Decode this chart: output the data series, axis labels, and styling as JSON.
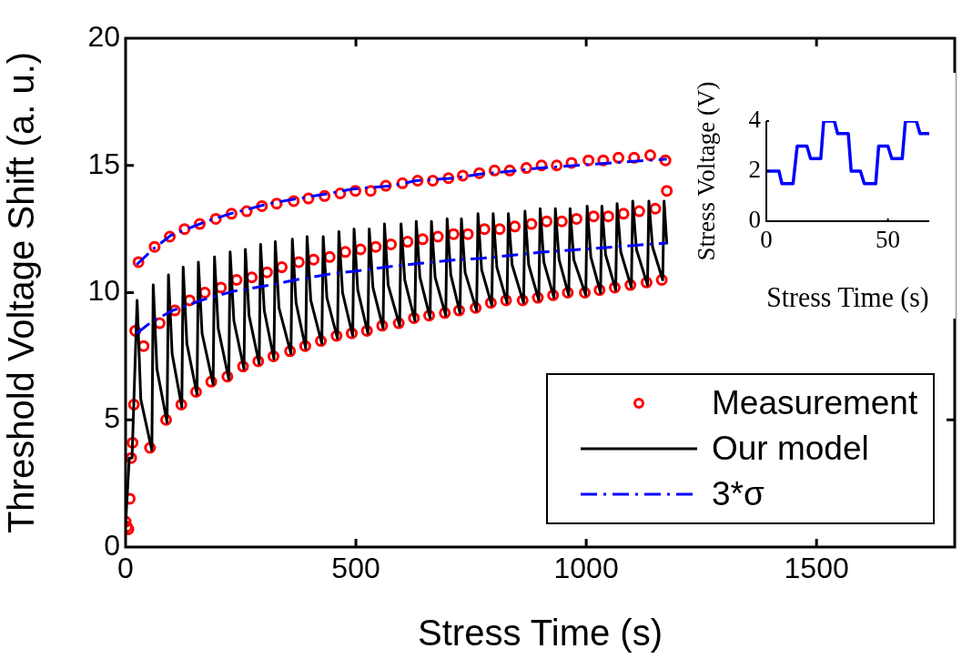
{
  "chart_data": [
    {
      "type": "scatter",
      "xlabel": "Stress Time (s)",
      "ylabel": "Threshold Voltage Shift (a. u.)",
      "xlim": [
        0,
        1800
      ],
      "xticks": [
        0,
        500,
        1000,
        1500
      ],
      "ylim": [
        0,
        20
      ],
      "yticks": [
        0,
        5,
        10,
        15,
        20
      ],
      "grid": false,
      "legend": "bottom right",
      "series": [
        {
          "name": "Measurement",
          "type": "scatter",
          "marker": "circle",
          "color": "#ff0000",
          "x": [
            0,
            3,
            6,
            9,
            12,
            15,
            18,
            21,
            28,
            39,
            53,
            63,
            74,
            88,
            96,
            107,
            121,
            128,
            139,
            153,
            161,
            172,
            186,
            196,
            207,
            221,
            230,
            241,
            255,
            263,
            274,
            288,
            296,
            307,
            321,
            328,
            339,
            357,
            365,
            376,
            390,
            397,
            408,
            424,
            432,
            443,
            458,
            466,
            477,
            491,
            499,
            510,
            524,
            532,
            543,
            557,
            565,
            576,
            593,
            601,
            612,
            626,
            634,
            645,
            659,
            667,
            678,
            693,
            701,
            712,
            724,
            732,
            743,
            760,
            768,
            779,
            793,
            801,
            812,
            826,
            834,
            845,
            862,
            870,
            881,
            895,
            903,
            914,
            928,
            936,
            947,
            960,
            968,
            979,
            997,
            1005,
            1016,
            1029,
            1037,
            1048,
            1062,
            1070,
            1081,
            1096,
            1104,
            1115,
            1131,
            1139,
            1150,
            1164,
            1172,
            1175
          ],
          "values": [
            1.0,
            0.8,
            0.7,
            1.9,
            3.5,
            4.1,
            5.6,
            8.5,
            11.2,
            7.9,
            3.9,
            11.8,
            8.8,
            5.0,
            12.2,
            9.3,
            5.6,
            12.5,
            9.7,
            6.1,
            12.7,
            10.0,
            6.5,
            12.9,
            10.2,
            6.7,
            13.1,
            10.5,
            7.1,
            13.2,
            10.6,
            7.3,
            13.4,
            10.8,
            7.5,
            13.5,
            11.0,
            7.7,
            13.6,
            11.2,
            7.9,
            13.7,
            11.3,
            8.1,
            13.8,
            11.4,
            8.3,
            13.9,
            11.6,
            8.4,
            14.0,
            11.7,
            8.5,
            14.0,
            11.8,
            8.7,
            14.2,
            11.9,
            8.8,
            14.3,
            12.0,
            9.0,
            14.4,
            12.1,
            9.1,
            14.4,
            12.2,
            9.2,
            14.5,
            12.3,
            9.3,
            14.6,
            12.3,
            9.4,
            14.7,
            12.5,
            9.6,
            14.8,
            12.5,
            9.7,
            14.8,
            12.6,
            9.7,
            14.9,
            12.7,
            9.8,
            15.0,
            12.8,
            9.9,
            15.0,
            12.8,
            10.0,
            15.1,
            12.9,
            10.0,
            15.2,
            13.0,
            10.1,
            15.2,
            13.0,
            10.2,
            15.3,
            13.1,
            10.3,
            15.3,
            13.2,
            10.4,
            15.4,
            13.3,
            10.5,
            15.2,
            14.0
          ]
        },
        {
          "name": "Our model",
          "type": "line",
          "marker": "none",
          "line_style": "solid",
          "color": "#000000",
          "x": [
            0,
            8,
            14,
            25,
            33,
            57,
            60,
            68,
            90,
            93,
            101,
            122,
            125,
            133,
            155,
            158,
            166,
            190,
            193,
            201,
            224,
            227,
            235,
            257,
            260,
            268,
            290,
            293,
            301,
            322,
            325,
            333,
            359,
            362,
            370,
            391,
            394,
            402,
            426,
            429,
            437,
            460,
            463,
            471,
            493,
            496,
            504,
            526,
            529,
            537,
            559,
            562,
            570,
            595,
            598,
            606,
            628,
            631,
            639,
            661,
            664,
            672,
            695,
            698,
            706,
            726,
            729,
            737,
            762,
            765,
            773,
            795,
            798,
            806,
            828,
            831,
            839,
            864,
            867,
            875,
            897,
            900,
            908,
            930,
            933,
            941,
            962,
            965,
            973,
            999,
            1002,
            1010,
            1031,
            1034,
            1042,
            1064,
            1067,
            1075,
            1098,
            1101,
            1109,
            1133,
            1136,
            1144,
            1166,
            1169,
            1175
          ],
          "values": [
            0.9,
            3.5,
            3.5,
            9.7,
            5.8,
            3.8,
            10.3,
            7.0,
            4.9,
            10.7,
            7.6,
            5.5,
            11.0,
            8.0,
            6.0,
            11.2,
            8.4,
            6.4,
            11.4,
            8.6,
            6.6,
            11.6,
            8.9,
            7.0,
            11.7,
            9.1,
            7.2,
            11.9,
            9.3,
            7.4,
            12.0,
            9.4,
            7.6,
            12.1,
            9.6,
            7.8,
            12.2,
            9.7,
            8.0,
            12.2,
            9.8,
            8.2,
            12.4,
            10.0,
            8.3,
            12.5,
            10.1,
            8.4,
            12.5,
            10.2,
            8.6,
            12.7,
            10.3,
            8.7,
            12.7,
            10.5,
            8.9,
            12.8,
            10.6,
            9.0,
            12.8,
            10.6,
            9.1,
            12.9,
            10.7,
            9.2,
            12.9,
            10.8,
            9.3,
            13.1,
            10.9,
            9.5,
            13.1,
            11.0,
            9.6,
            13.1,
            11.1,
            9.6,
            13.2,
            11.1,
            9.7,
            13.3,
            11.2,
            9.8,
            13.3,
            11.3,
            9.9,
            13.3,
            11.3,
            9.9,
            13.4,
            11.4,
            10.0,
            13.4,
            11.5,
            10.1,
            13.5,
            11.6,
            10.2,
            13.6,
            11.7,
            10.3,
            13.6,
            11.8,
            10.5,
            13.6,
            11.9
          ]
        },
        {
          "name": "3*σ",
          "type": "line",
          "marker": "none",
          "line_style": "dashdot",
          "color": "#0000ff",
          "x": [
            24,
            59,
            98,
            175,
            227,
            312,
            358,
            443,
            492,
            578,
            630,
            713,
            766,
            851,
            900,
            1175
          ],
          "values": [
            11.1,
            11.7,
            12.25,
            12.8,
            13.1,
            13.5,
            13.65,
            13.9,
            14.07,
            14.2,
            14.4,
            14.5,
            14.65,
            14.8,
            14.9,
            15.25
          ]
        },
        {
          "type": "line",
          "marker": "none",
          "line_style": "dashdot",
          "color": "#0000ff",
          "x": [
            24,
            56,
            102,
            181,
            234,
            315,
            368,
            450,
            502,
            585,
            640,
            723,
            775,
            857,
            910,
            1175
          ],
          "values": [
            8.4,
            8.85,
            9.3,
            9.8,
            10.05,
            10.3,
            10.5,
            10.75,
            10.85,
            11.05,
            11.15,
            11.3,
            11.35,
            11.5,
            11.6,
            11.95
          ]
        }
      ]
    },
    {
      "type": "line",
      "xlabel": "Stress Time (s)",
      "ylabel": "Stress Voltage (V)",
      "xlim": [
        0,
        67
      ],
      "xticks": [
        0,
        50
      ],
      "ylim": [
        0,
        4
      ],
      "yticks": [
        0,
        2,
        4
      ],
      "grid": false,
      "legend": false,
      "series": [
        {
          "color": "#0000ff",
          "x": [
            0,
            5.2,
            6.4,
            11,
            12.7,
            16.7,
            18.2,
            22.4,
            23.6,
            28,
            29.3,
            33.7,
            34.9,
            38.7,
            40.3,
            45,
            46.2,
            50,
            51.6,
            55.9,
            57.2,
            61.7,
            63.2,
            67
          ],
          "values": [
            2,
            2,
            1.5,
            1.5,
            3,
            3,
            2.5,
            2.5,
            4,
            4,
            3.5,
            3.5,
            2,
            2,
            1.5,
            1.5,
            3,
            3,
            2.5,
            2.5,
            4,
            4,
            3.5,
            3.5
          ]
        }
      ]
    }
  ]
}
